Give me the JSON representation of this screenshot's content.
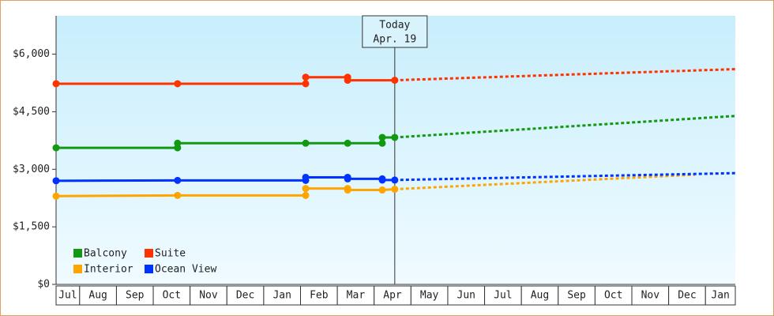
{
  "chart_data": {
    "type": "line",
    "categories": [
      "Jul",
      "Aug",
      "Sep",
      "Oct",
      "Nov",
      "Dec",
      "Jan",
      "Feb",
      "Mar",
      "Apr",
      "May",
      "Jun",
      "Jul",
      "Aug",
      "Sep",
      "Oct",
      "Nov",
      "Dec",
      "Jan"
    ],
    "xlim": [
      0.36,
      18.81
    ],
    "ylim": [
      0,
      7000
    ],
    "yticks": [
      {
        "value": 0,
        "label": "$0"
      },
      {
        "value": 1500,
        "label": "$1,500"
      },
      {
        "value": 3000,
        "label": "$3,000"
      },
      {
        "value": 4500,
        "label": "$4,500"
      },
      {
        "value": 6000,
        "label": "$6,000"
      }
    ],
    "today": {
      "x": 9.56,
      "label": [
        "Today",
        "Apr. 19"
      ]
    },
    "series": [
      {
        "name": "Balcony",
        "color": "#119911",
        "x": [
          0.36,
          3.66,
          3.66,
          7.14,
          8.28,
          9.22,
          9.22,
          9.56
        ],
        "values": [
          3560,
          3560,
          3680,
          3680,
          3680,
          3680,
          3830,
          3830
        ],
        "forecast_x": [
          9.56,
          18.81
        ],
        "forecast_values": [
          3830,
          4390
        ]
      },
      {
        "name": "Suite",
        "color": "#ff3300",
        "x": [
          0.36,
          3.66,
          7.14,
          7.14,
          8.28,
          8.28,
          9.56
        ],
        "values": [
          5230,
          5230,
          5230,
          5400,
          5400,
          5320,
          5320
        ],
        "forecast_x": [
          9.56,
          18.81
        ],
        "forecast_values": [
          5320,
          5610
        ]
      },
      {
        "name": "Interior",
        "color": "#ffa500",
        "x": [
          0.36,
          3.66,
          7.14,
          7.14,
          8.28,
          8.28,
          9.22,
          9.56
        ],
        "values": [
          2300,
          2320,
          2320,
          2500,
          2500,
          2460,
          2460,
          2480
        ],
        "forecast_x": [
          9.56,
          17.72
        ],
        "forecast_values": [
          2480,
          2860
        ]
      },
      {
        "name": "Ocean View",
        "color": "#0033ff",
        "x": [
          0.36,
          3.66,
          7.14,
          7.14,
          8.28,
          8.28,
          9.22,
          9.22,
          9.56
        ],
        "values": [
          2700,
          2710,
          2710,
          2790,
          2790,
          2750,
          2750,
          2720,
          2720
        ],
        "forecast_x": [
          9.56,
          18.81
        ],
        "forecast_values": [
          2720,
          2900
        ]
      }
    ]
  }
}
